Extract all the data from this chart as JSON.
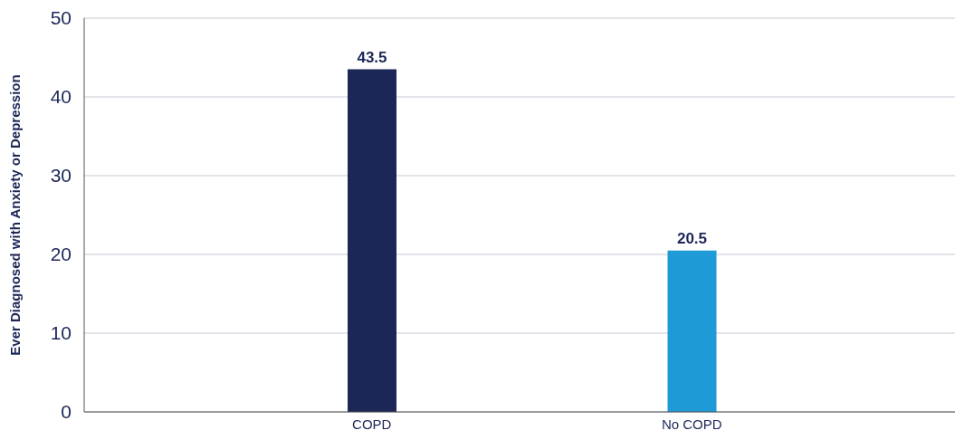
{
  "chart_data": {
    "type": "bar",
    "ylabel": "Ever Diagnosed with Anxiety or Depression",
    "categories": [
      "COPD",
      "No COPD"
    ],
    "values": [
      43.5,
      20.5
    ],
    "colors": [
      "#1c2657",
      "#1e9ad6"
    ],
    "ylim": [
      0,
      50
    ],
    "yticks": [
      0,
      10,
      20,
      30,
      40,
      50
    ],
    "grid": "y",
    "data_labels": true
  }
}
